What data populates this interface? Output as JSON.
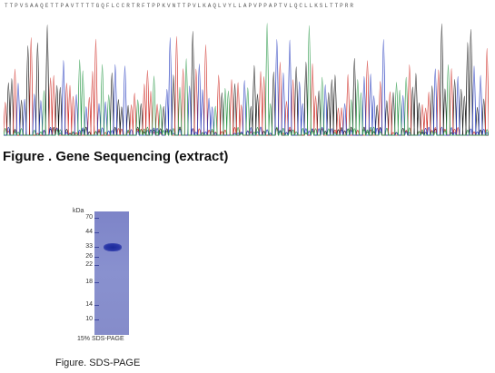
{
  "sequencing": {
    "bases": "TTPVSAAQETTPAVTTTTGQFLCCRTRFTPPKVNTTPVLKAQLVYLLAPVPPAPTVLQCLLKSLTTPRR",
    "caption": "Figure . Gene Sequencing (extract)",
    "trace_colors": {
      "A": "#2e9a4b",
      "C": "#2a3fbf",
      "G": "#111111",
      "T": "#d0322b"
    }
  },
  "gel": {
    "unit_label": "kDa",
    "markers": [
      "70",
      "44",
      "33",
      "26",
      "22",
      "18",
      "14",
      "10"
    ],
    "band_near_marker": "33",
    "gel_label": "15% SDS-PAGE",
    "caption": "Figure. SDS-PAGE",
    "gel_color": "#8088cb",
    "band_color": "#1f2c9c"
  }
}
